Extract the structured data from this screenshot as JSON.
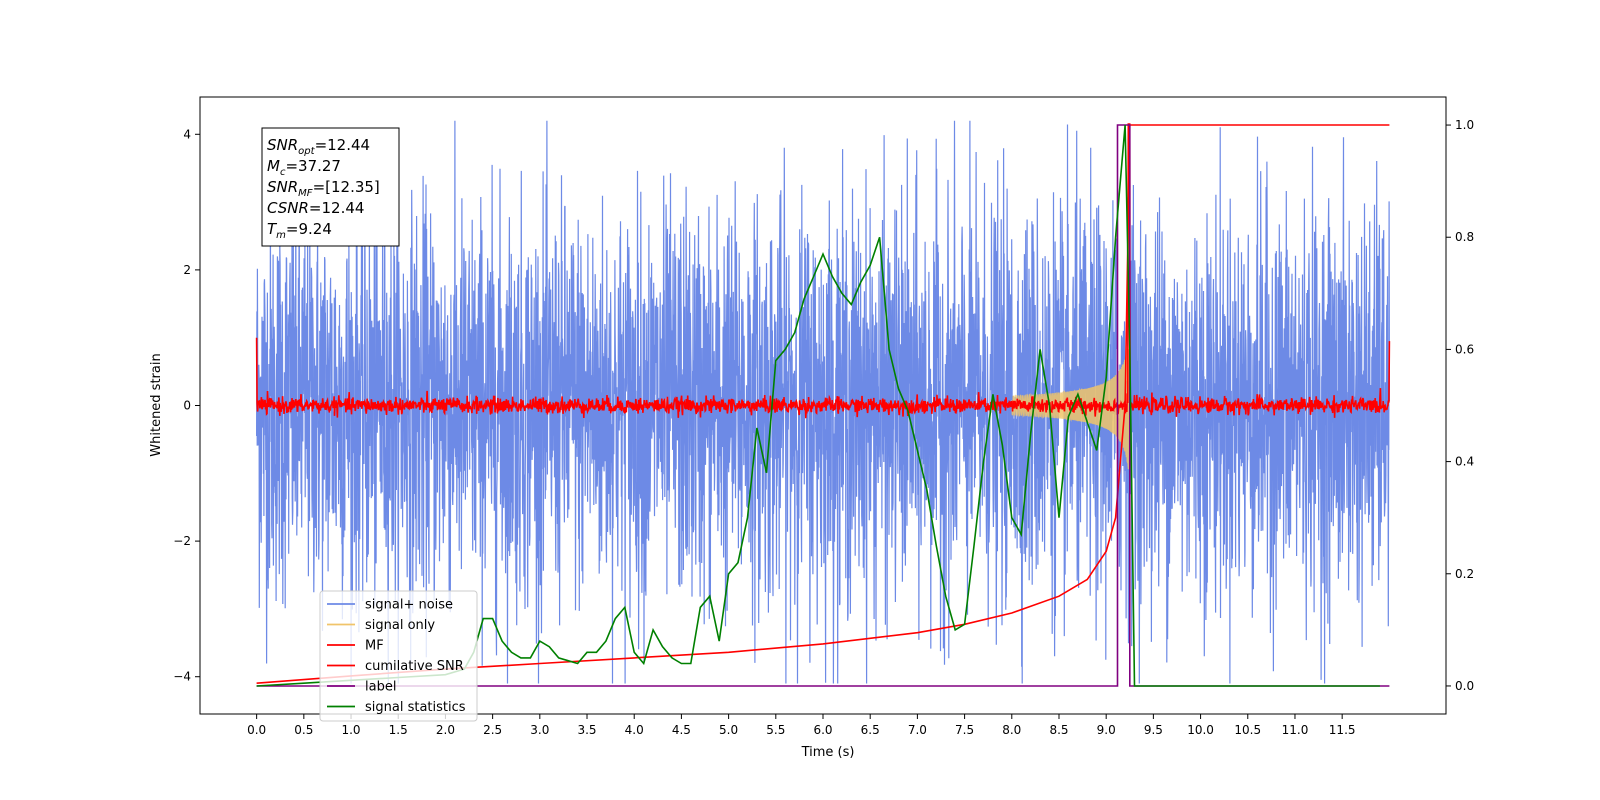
{
  "chart_data": {
    "type": "line",
    "xlabel": "Time (s)",
    "ylabel": "Whitened strain",
    "xlim": [
      -0.6,
      12.6
    ],
    "ylim": [
      -4.55,
      4.55
    ],
    "ylim_right": [
      -0.05,
      1.05
    ],
    "x_ticks": [
      "0.0",
      "0.5",
      "1.0",
      "1.5",
      "2.0",
      "2.5",
      "3.0",
      "3.5",
      "4.0",
      "4.5",
      "5.0",
      "5.5",
      "6.0",
      "6.5",
      "7.0",
      "7.5",
      "8.0",
      "8.5",
      "9.0",
      "9.5",
      "10.0",
      "10.5",
      "11.0",
      "11.5"
    ],
    "y_ticks_left": [
      "4",
      "2",
      "0",
      "−2",
      "−4"
    ],
    "y_ticks_right": [
      "1.0",
      "0.8",
      "0.6",
      "0.4",
      "0.2",
      "0.0"
    ],
    "grid": false,
    "legend_position": "lower-left",
    "colors": {
      "signal_noise": "#6d8ae6",
      "signal_only": "#f0c46a",
      "mf": "#ff0000",
      "cumulative_snr": "#ff0000",
      "label": "#800080",
      "signal_statistics": "#008000"
    },
    "annotation": {
      "lines": [
        {
          "name": "SNR",
          "sub": "opt",
          "value": "=12.44"
        },
        {
          "name": "M",
          "sub": "c",
          "value": "=37.27"
        },
        {
          "name": "SNR",
          "sub": "MF",
          "value": "=[12.35]"
        },
        {
          "name": "CSNR",
          "sub": "",
          "value": "=12.44"
        },
        {
          "name": "T",
          "sub": "m",
          "value": "=9.24"
        }
      ]
    },
    "series": [
      {
        "name": "signal+ noise",
        "axis": "left",
        "description_values": {
          "range": [
            -4.1,
            4.2
          ],
          "duration_s": 12.0
        }
      },
      {
        "name": "signal only",
        "axis": "left",
        "peak_time": 9.24,
        "peak_amplitude": 1.0
      },
      {
        "name": "MF",
        "axis": "left",
        "baseline": 0.0,
        "spike_time": 9.24,
        "spike_value": 4.15
      },
      {
        "name": "cumilative SNR",
        "axis": "right",
        "x": [
          0.0,
          1.0,
          2.0,
          3.0,
          4.0,
          5.0,
          6.0,
          7.0,
          7.5,
          8.0,
          8.5,
          8.8,
          9.0,
          9.1,
          9.2,
          9.25,
          12.0
        ],
        "y": [
          0.005,
          0.018,
          0.03,
          0.04,
          0.05,
          0.06,
          0.075,
          0.095,
          0.11,
          0.13,
          0.16,
          0.19,
          0.24,
          0.3,
          0.5,
          1.0,
          1.0
        ]
      },
      {
        "name": "label",
        "axis": "right",
        "x": [
          0.0,
          9.12,
          9.12,
          9.25,
          9.25,
          12.0
        ],
        "y": [
          0.0,
          0.0,
          1.0,
          1.0,
          0.0,
          0.0
        ]
      },
      {
        "name": "signal statistics",
        "axis": "right",
        "x": [
          0.0,
          0.5,
          1.0,
          1.5,
          2.0,
          2.2,
          2.3,
          2.4,
          2.5,
          2.6,
          2.7,
          2.8,
          2.9,
          3.0,
          3.1,
          3.2,
          3.3,
          3.4,
          3.5,
          3.6,
          3.7,
          3.8,
          3.9,
          4.0,
          4.1,
          4.2,
          4.3,
          4.4,
          4.5,
          4.6,
          4.7,
          4.8,
          4.9,
          5.0,
          5.1,
          5.2,
          5.3,
          5.4,
          5.5,
          5.6,
          5.7,
          5.8,
          5.9,
          6.0,
          6.1,
          6.2,
          6.3,
          6.4,
          6.5,
          6.6,
          6.7,
          6.8,
          6.9,
          7.0,
          7.1,
          7.2,
          7.3,
          7.4,
          7.5,
          7.6,
          7.7,
          7.8,
          7.9,
          8.0,
          8.1,
          8.2,
          8.3,
          8.4,
          8.5,
          8.6,
          8.7,
          8.8,
          8.9,
          9.0,
          9.1,
          9.2,
          9.25,
          9.3,
          9.5,
          10.0,
          11.0,
          11.9
        ],
        "y": [
          0.0,
          0.005,
          0.01,
          0.015,
          0.02,
          0.03,
          0.06,
          0.12,
          0.12,
          0.08,
          0.06,
          0.05,
          0.05,
          0.08,
          0.07,
          0.05,
          0.045,
          0.04,
          0.06,
          0.06,
          0.08,
          0.12,
          0.14,
          0.06,
          0.04,
          0.1,
          0.07,
          0.05,
          0.04,
          0.04,
          0.14,
          0.16,
          0.08,
          0.2,
          0.22,
          0.3,
          0.46,
          0.38,
          0.58,
          0.6,
          0.63,
          0.69,
          0.73,
          0.77,
          0.73,
          0.7,
          0.68,
          0.72,
          0.75,
          0.8,
          0.6,
          0.53,
          0.49,
          0.42,
          0.35,
          0.25,
          0.16,
          0.1,
          0.11,
          0.25,
          0.4,
          0.52,
          0.43,
          0.3,
          0.27,
          0.45,
          0.6,
          0.5,
          0.3,
          0.48,
          0.52,
          0.47,
          0.42,
          0.55,
          0.8,
          1.0,
          0.6,
          0.0,
          0.0,
          0.0,
          0.0,
          0.0
        ]
      }
    ]
  }
}
